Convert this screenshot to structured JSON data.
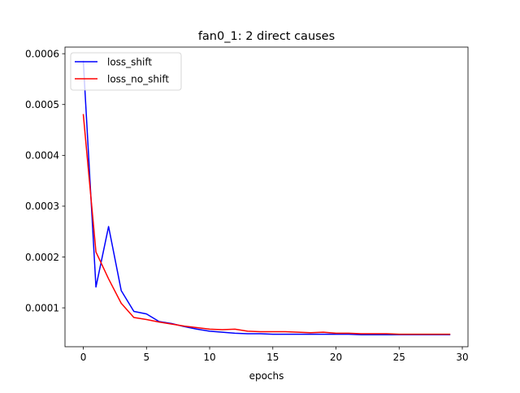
{
  "chart_data": {
    "type": "line",
    "title": "fan0_1: 2 direct causes",
    "xlabel": "epochs",
    "ylabel": "",
    "xlim": [
      -1.45,
      30.45
    ],
    "ylim": [
      2.35e-05,
      0.000613
    ],
    "xticks": [
      0,
      5,
      10,
      15,
      20,
      25,
      30
    ],
    "xtick_labels": [
      "0",
      "5",
      "10",
      "15",
      "20",
      "25",
      "30"
    ],
    "yticks": [
      0.0001,
      0.0002,
      0.0003,
      0.0004,
      0.0005,
      0.0006
    ],
    "ytick_labels": [
      "0.0001",
      "0.0002",
      "0.0003",
      "0.0004",
      "0.0005",
      "0.0006"
    ],
    "grid": false,
    "legend_position": "upper-left",
    "x": [
      0,
      1,
      2,
      3,
      4,
      5,
      6,
      7,
      8,
      9,
      10,
      11,
      12,
      13,
      14,
      15,
      16,
      17,
      18,
      19,
      20,
      21,
      22,
      23,
      24,
      25,
      26,
      27,
      28,
      29
    ],
    "series": [
      {
        "name": "loss_shift",
        "color": "#0000ff",
        "values": [
          0.000585,
          0.000141,
          0.00026,
          0.000134,
          9.3e-05,
          8.8e-05,
          7.3e-05,
          6.9e-05,
          6.3e-05,
          5.8e-05,
          5.4e-05,
          5.2e-05,
          5e-05,
          4.9e-05,
          4.9e-05,
          4.8e-05,
          4.8e-05,
          4.8e-05,
          4.8e-05,
          4.8e-05,
          4.8e-05,
          4.8e-05,
          4.7e-05,
          4.7e-05,
          4.7e-05,
          4.7e-05,
          4.7e-05,
          4.7e-05,
          4.7e-05,
          4.7e-05
        ]
      },
      {
        "name": "loss_no_shift",
        "color": "#ff0000",
        "values": [
          0.00048,
          0.00021,
          0.000157,
          0.000109,
          8.1e-05,
          7.7e-05,
          7.2e-05,
          6.8e-05,
          6.4e-05,
          6.1e-05,
          5.8e-05,
          5.7e-05,
          5.8e-05,
          5.4e-05,
          5.3e-05,
          5.3e-05,
          5.3e-05,
          5.2e-05,
          5.1e-05,
          5.2e-05,
          5e-05,
          5e-05,
          4.9e-05,
          4.9e-05,
          4.9e-05,
          4.8e-05,
          4.8e-05,
          4.8e-05,
          4.8e-05,
          4.8e-05
        ]
      }
    ]
  }
}
